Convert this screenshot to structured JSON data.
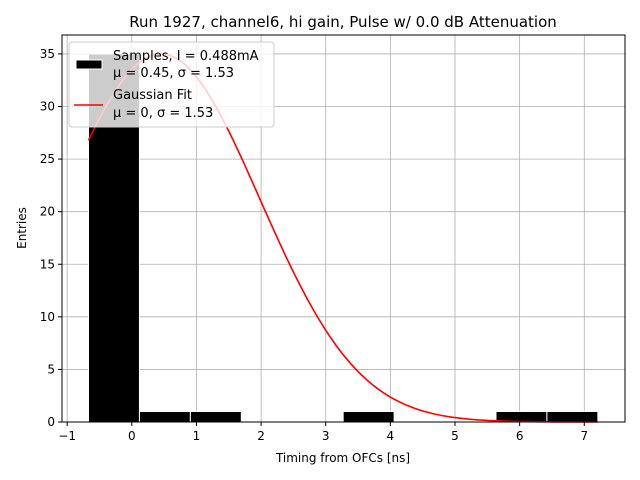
{
  "chart_data": {
    "type": "bar",
    "title": "Run 1927, channel6, hi gain, Pulse w/ 0.0 dB Attenuation",
    "xlabel": "Timing from OFCs [ns]",
    "ylabel": "Entries",
    "xlim": [
      -1.08,
      7.63
    ],
    "ylim": [
      0,
      36.8
    ],
    "grid": true,
    "xticks": [
      -1,
      0,
      1,
      2,
      3,
      4,
      5,
      6,
      7
    ],
    "yticks": [
      0,
      5,
      10,
      15,
      20,
      25,
      30,
      35
    ],
    "histogram": {
      "name": "Samples, I = 0.488mA",
      "stats": "μ = 0.45, σ = 1.53",
      "bin_edges": [
        -0.67,
        0.118,
        0.906,
        1.694,
        2.482,
        3.27,
        4.058,
        4.846,
        5.634,
        6.422,
        7.21
      ],
      "counts": [
        35,
        1,
        1,
        0,
        0,
        1,
        0,
        0,
        1,
        1
      ],
      "color": "#000000"
    },
    "fit": {
      "name": "Gaussian Fit",
      "stats": "μ = 0, σ = 1.53",
      "amplitude": 35,
      "mean_drawn": 0.45,
      "sigma": 1.53,
      "x_range": [
        -0.67,
        7.21
      ],
      "color": "#ff0000"
    },
    "legend_placement": "top-left"
  }
}
